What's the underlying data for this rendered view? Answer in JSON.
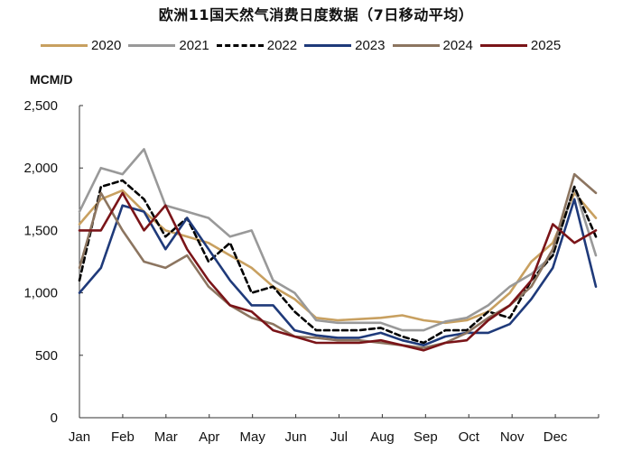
{
  "chart_data": {
    "type": "line",
    "title": "欧洲11国天然气消费日度数据（7日移动平均）",
    "ylabel": "MCM/D",
    "xlabel": "",
    "ylim": [
      0,
      2500
    ],
    "yticks": [
      "0",
      "500",
      "1,000",
      "1,500",
      "2,000",
      "2,500"
    ],
    "categories": [
      "Jan",
      "Feb",
      "Mar",
      "Apr",
      "May",
      "Jun",
      "Jul",
      "Aug",
      "Sep",
      "Oct",
      "Nov",
      "Dec"
    ],
    "x_note": "25 points per series, approximately twice monthly from Jan 1 to Dec 31",
    "grid": false,
    "legend_position": "top",
    "series": [
      {
        "name": "2020",
        "color": "#c8a060",
        "dash": false,
        "values": [
          1550,
          1750,
          1820,
          1650,
          1500,
          1450,
          1400,
          1300,
          1200,
          1050,
          950,
          800,
          780,
          790,
          800,
          820,
          780,
          760,
          780,
          850,
          1000,
          1250,
          1400,
          1800,
          1600
        ]
      },
      {
        "name": "2021",
        "color": "#999999",
        "dash": false,
        "values": [
          1650,
          2000,
          1950,
          2150,
          1700,
          1650,
          1600,
          1450,
          1500,
          1100,
          1000,
          780,
          760,
          760,
          760,
          700,
          700,
          770,
          800,
          900,
          1050,
          1150,
          1300,
          1850,
          1300
        ]
      },
      {
        "name": "2022",
        "color": "#000000",
        "dash": true,
        "values": [
          1100,
          1850,
          1900,
          1750,
          1450,
          1600,
          1250,
          1400,
          1000,
          1050,
          850,
          700,
          700,
          700,
          720,
          650,
          600,
          700,
          700,
          850,
          800,
          1100,
          1300,
          1850,
          1450
        ]
      },
      {
        "name": "2023",
        "color": "#1f3a7a",
        "dash": false,
        "values": [
          1000,
          1200,
          1700,
          1650,
          1350,
          1600,
          1350,
          1100,
          900,
          900,
          700,
          660,
          640,
          640,
          680,
          620,
          580,
          650,
          680,
          680,
          750,
          950,
          1200,
          1750,
          1050
        ]
      },
      {
        "name": "2024",
        "color": "#8c7560",
        "dash": false,
        "values": [
          1200,
          1800,
          1500,
          1250,
          1200,
          1300,
          1050,
          900,
          800,
          750,
          650,
          640,
          620,
          620,
          600,
          580,
          560,
          600,
          680,
          800,
          900,
          1050,
          1350,
          1950,
          1800
        ]
      },
      {
        "name": "2025",
        "color": "#7a1418",
        "dash": false,
        "values": [
          1500,
          1500,
          1800,
          1500,
          1700,
          1350,
          1100,
          900,
          850,
          700,
          650,
          600,
          600,
          600,
          620,
          580,
          540,
          600,
          620,
          780,
          900,
          1100,
          1550,
          1400,
          1500
        ]
      }
    ]
  },
  "header": {
    "title": "欧洲11国天然气消费日度数据（7日移动平均）"
  },
  "axis": {
    "unit": "MCM/D"
  },
  "legend": {
    "items": [
      "2020",
      "2021",
      "2022",
      "2023",
      "2024",
      "2025"
    ]
  }
}
